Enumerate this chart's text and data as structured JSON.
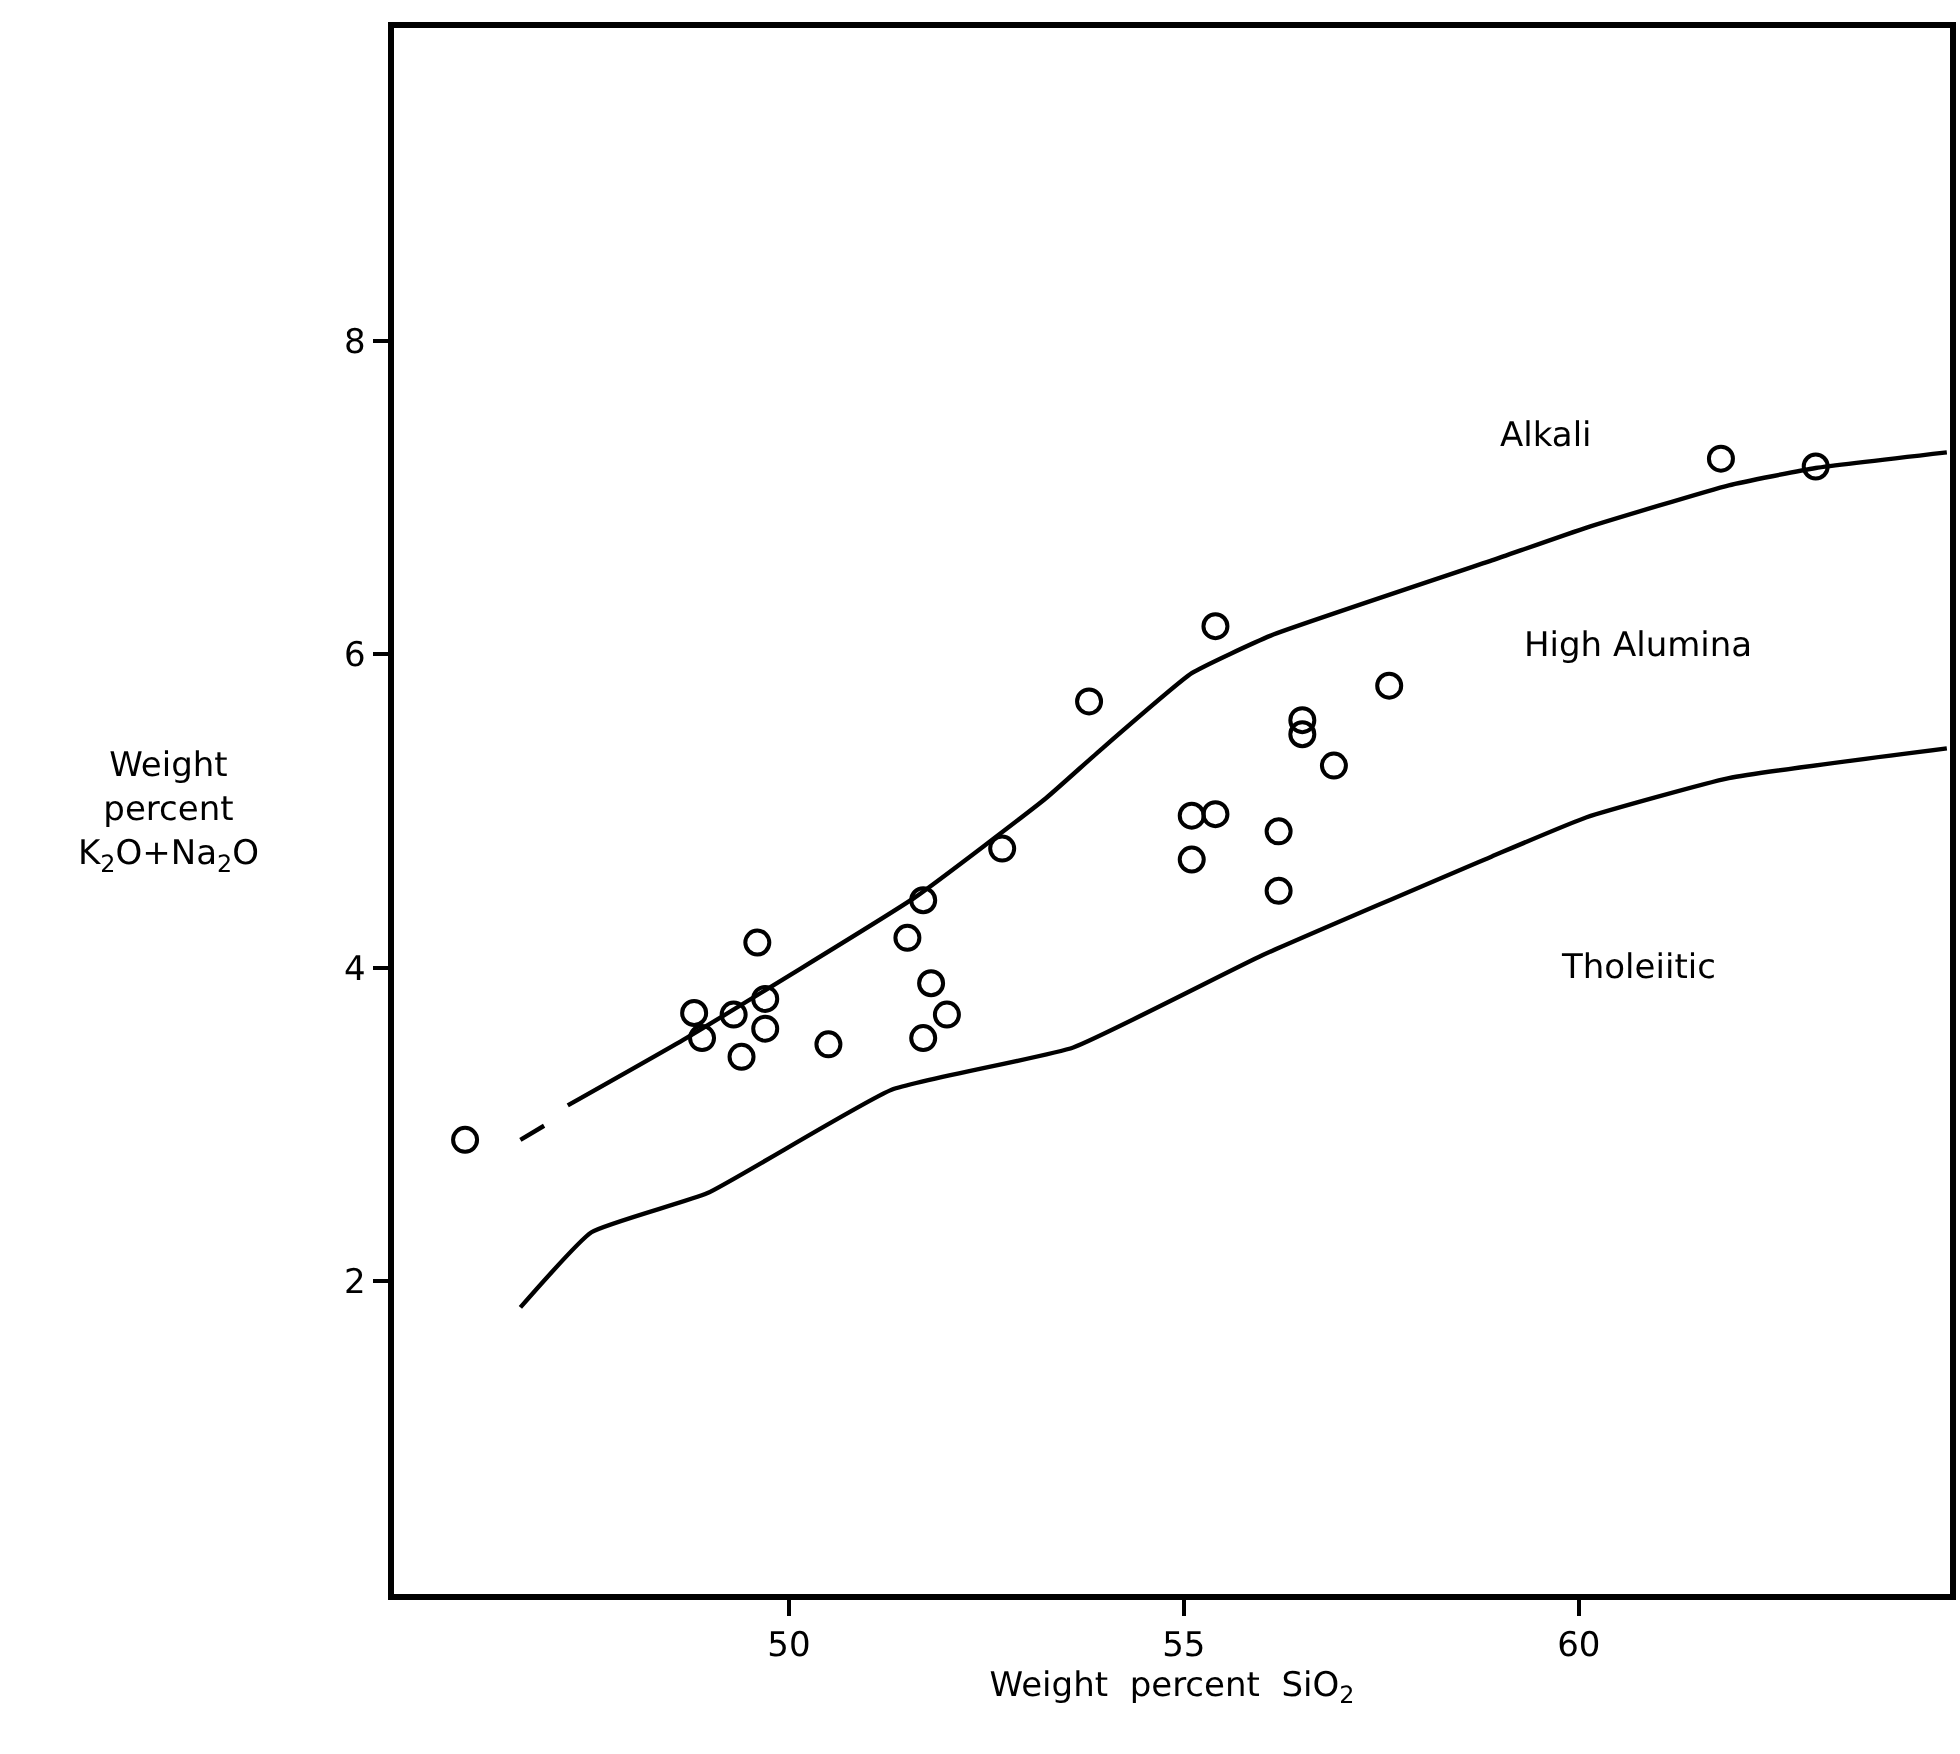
{
  "chart_data": {
    "type": "scatter",
    "xlabel": "Weight  percent  SiO$_{2}$",
    "ylabel": "Weight\npercent\nK$_{2}$O+Na$_{2}$O",
    "xlim": [
      45,
      64.7
    ],
    "ylim": [
      0,
      10
    ],
    "xticks": [
      50,
      55,
      60
    ],
    "yticks": [
      2,
      4,
      6,
      8
    ],
    "legend": false,
    "series": [
      {
        "color": "#000000",
        "marker": "circle",
        "x": [
          45.9,
          48.8,
          48.9,
          49.3,
          49.4,
          49.6,
          49.7,
          49.7,
          50.5,
          51.5,
          51.7,
          51.8,
          52.0,
          51.7,
          52.7,
          53.8,
          55.4,
          55.1,
          55.4,
          55.1,
          56.2,
          56.2,
          56.5,
          56.5,
          56.9,
          57.6,
          61.8,
          63.0
        ],
        "values": [
          2.9,
          3.71,
          3.55,
          3.7,
          3.43,
          4.16,
          3.8,
          3.61,
          3.51,
          4.19,
          4.43,
          3.9,
          3.7,
          3.55,
          4.76,
          5.7,
          6.18,
          4.97,
          4.98,
          4.69,
          4.87,
          4.49,
          5.58,
          5.49,
          5.29,
          5.8,
          7.25,
          7.2
        ]
      },
      {
        "type": "line",
        "color": "#000000",
        "marker": "none",
        "x": [
          46.6,
          46.9,
          47.05,
          47.2,
          48.7,
          51.6,
          53.25,
          53.9,
          55.1,
          56.1,
          58.9,
          60.1,
          61.9,
          63.0,
          64.66
        ],
        "values": [
          2.9,
          2.99,
          null,
          3.12,
          3.55,
          4.45,
          5.08,
          5.37,
          5.88,
          6.12,
          6.6,
          6.81,
          7.08,
          7.19,
          7.29
        ]
      },
      {
        "type": "line",
        "color": "#000000",
        "marker": "none",
        "x": [
          46.6,
          47.5,
          48.97,
          51.3,
          53.6,
          56.0,
          58.9,
          60.1,
          61.9,
          64.66
        ],
        "values": [
          1.83,
          2.31,
          2.56,
          3.22,
          3.49,
          4.08,
          4.71,
          4.96,
          5.21,
          5.4
        ]
      }
    ],
    "annotations": [
      "Alkali",
      "High Alumina",
      "Tholeiitic"
    ]
  }
}
